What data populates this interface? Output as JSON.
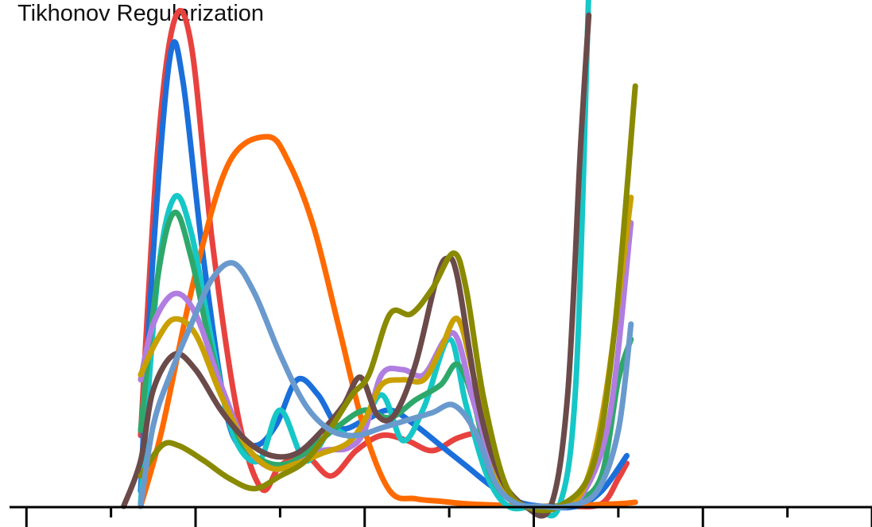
{
  "chart_data": {
    "type": "line",
    "title": "Tikhonov Regularization",
    "xlabel": "",
    "ylabel": "",
    "xlim": [
      -0.2,
      10
    ],
    "ylim": [
      0,
      10
    ],
    "grid": false,
    "legend": "none",
    "x_ticks": {
      "major": [
        0,
        2,
        4,
        6,
        8,
        10
      ],
      "minor_step": 1,
      "labels_shown": false
    },
    "series": [
      {
        "color": "#e8423f",
        "points": [
          [
            1.35,
            1.4
          ],
          [
            1.55,
            7
          ],
          [
            1.75,
            9.6
          ],
          [
            1.95,
            9.1
          ],
          [
            2.2,
            5.2
          ],
          [
            2.5,
            1.8
          ],
          [
            2.78,
            0.35
          ],
          [
            3.0,
            0.8
          ],
          [
            3.3,
            1.0
          ],
          [
            3.6,
            0.6
          ],
          [
            3.9,
            1.1
          ],
          [
            4.2,
            1.4
          ],
          [
            4.5,
            1.3
          ],
          [
            4.8,
            1.1
          ],
          [
            5.1,
            1.35
          ],
          [
            5.35,
            1.4
          ],
          [
            5.5,
            0.9
          ],
          [
            5.7,
            0.2
          ],
          [
            6.0,
            0
          ],
          [
            6.4,
            0
          ],
          [
            6.8,
            0.05
          ],
          [
            7.0,
            0.55
          ],
          [
            7.1,
            0.85
          ]
        ]
      },
      {
        "color": "#1a6fdb",
        "points": [
          [
            1.35,
            0.3
          ],
          [
            1.5,
            5
          ],
          [
            1.7,
            8.9
          ],
          [
            1.85,
            8.4
          ],
          [
            2.1,
            4.8
          ],
          [
            2.4,
            1.6
          ],
          [
            2.7,
            1.2
          ],
          [
            2.95,
            1.6
          ],
          [
            3.2,
            2.5
          ],
          [
            3.45,
            2.2
          ],
          [
            3.7,
            1.55
          ],
          [
            4.0,
            1.7
          ],
          [
            4.3,
            1.9
          ],
          [
            4.6,
            1.6
          ],
          [
            4.9,
            1.2
          ],
          [
            5.2,
            0.8
          ],
          [
            5.5,
            0.4
          ],
          [
            5.8,
            0.1
          ],
          [
            6.1,
            0
          ],
          [
            6.5,
            0
          ],
          [
            6.8,
            0.3
          ],
          [
            7.1,
            1.0
          ]
        ]
      },
      {
        "color": "#ff6a00",
        "points": [
          [
            1.35,
            0
          ],
          [
            1.6,
            1.5
          ],
          [
            2.0,
            4.6
          ],
          [
            2.4,
            6.8
          ],
          [
            2.85,
            7.3
          ],
          [
            3.1,
            6.8
          ],
          [
            3.4,
            5.5
          ],
          [
            3.7,
            3.5
          ],
          [
            4.0,
            1.5
          ],
          [
            4.3,
            0.3
          ],
          [
            4.6,
            0.15
          ],
          [
            4.9,
            0.1
          ],
          [
            5.2,
            0.05
          ],
          [
            5.6,
            0.02
          ],
          [
            6.0,
            0
          ],
          [
            6.5,
            0.02
          ],
          [
            7.0,
            0.05
          ],
          [
            7.2,
            0.08
          ]
        ]
      },
      {
        "color": "#16c7c7",
        "points": [
          [
            1.35,
            0.05
          ],
          [
            1.55,
            4.5
          ],
          [
            1.75,
            6.1
          ],
          [
            1.95,
            5.4
          ],
          [
            2.2,
            3.2
          ],
          [
            2.45,
            1.4
          ],
          [
            2.75,
            0.9
          ],
          [
            3.0,
            1.9
          ],
          [
            3.3,
            0.9
          ],
          [
            3.6,
            1.5
          ],
          [
            3.9,
            1.4
          ],
          [
            4.2,
            2.2
          ],
          [
            4.45,
            1.3
          ],
          [
            4.7,
            1.95
          ],
          [
            5.0,
            3.3
          ],
          [
            5.2,
            2.0
          ],
          [
            5.45,
            0.6
          ],
          [
            5.7,
            0
          ],
          [
            6.0,
            0
          ],
          [
            6.3,
            0
          ],
          [
            6.5,
            2.5
          ],
          [
            6.65,
            10.2
          ]
        ]
      },
      {
        "color": "#2ea86a",
        "points": [
          [
            1.35,
            1.5
          ],
          [
            1.55,
            4.5
          ],
          [
            1.75,
            5.8
          ],
          [
            1.95,
            4.9
          ],
          [
            2.2,
            3.0
          ],
          [
            2.5,
            1.4
          ],
          [
            2.8,
            0.9
          ],
          [
            3.1,
            0.85
          ],
          [
            3.4,
            1.2
          ],
          [
            3.7,
            1.6
          ],
          [
            4.0,
            1.9
          ],
          [
            4.3,
            1.75
          ],
          [
            4.6,
            2.1
          ],
          [
            4.9,
            2.4
          ],
          [
            5.1,
            2.8
          ],
          [
            5.3,
            2.0
          ],
          [
            5.5,
            0.6
          ],
          [
            5.8,
            0.05
          ],
          [
            6.2,
            0
          ],
          [
            6.5,
            0.1
          ],
          [
            6.8,
            0.6
          ],
          [
            7.0,
            2.5
          ],
          [
            7.15,
            3.3
          ]
        ]
      },
      {
        "color": "#b07de0",
        "points": [
          [
            1.35,
            2.5
          ],
          [
            1.5,
            3.6
          ],
          [
            1.75,
            4.2
          ],
          [
            2.0,
            3.8
          ],
          [
            2.3,
            2.4
          ],
          [
            2.6,
            1.2
          ],
          [
            2.9,
            0.75
          ],
          [
            3.2,
            0.85
          ],
          [
            3.5,
            1.1
          ],
          [
            3.8,
            1.15
          ],
          [
            4.0,
            1.5
          ],
          [
            4.2,
            2.6
          ],
          [
            4.45,
            2.7
          ],
          [
            4.7,
            2.6
          ],
          [
            4.95,
            3.3
          ],
          [
            5.1,
            3.3
          ],
          [
            5.3,
            2.0
          ],
          [
            5.6,
            0.5
          ],
          [
            5.9,
            0
          ],
          [
            6.3,
            0
          ],
          [
            6.6,
            0.3
          ],
          [
            6.9,
            1.8
          ],
          [
            7.15,
            5.6
          ]
        ]
      },
      {
        "color": "#c9a000",
        "points": [
          [
            1.35,
            2.6
          ],
          [
            1.55,
            3.3
          ],
          [
            1.75,
            3.7
          ],
          [
            2.0,
            3.4
          ],
          [
            2.3,
            2.2
          ],
          [
            2.6,
            1.2
          ],
          [
            2.9,
            0.75
          ],
          [
            3.2,
            0.85
          ],
          [
            3.5,
            1.05
          ],
          [
            3.8,
            1.25
          ],
          [
            4.0,
            1.7
          ],
          [
            4.2,
            2.4
          ],
          [
            4.45,
            2.5
          ],
          [
            4.7,
            2.5
          ],
          [
            4.9,
            3.1
          ],
          [
            5.1,
            3.7
          ],
          [
            5.3,
            2.5
          ],
          [
            5.6,
            0.5
          ],
          [
            5.9,
            0
          ],
          [
            6.3,
            0
          ],
          [
            6.6,
            0.4
          ],
          [
            6.85,
            2.2
          ],
          [
            7.15,
            6.1
          ]
        ]
      },
      {
        "color": "#6b4a4a",
        "points": [
          [
            1.15,
            0
          ],
          [
            1.35,
            0.9
          ],
          [
            1.5,
            2.3
          ],
          [
            1.75,
            3.0
          ],
          [
            2.0,
            2.7
          ],
          [
            2.3,
            1.9
          ],
          [
            2.6,
            1.3
          ],
          [
            2.9,
            1.0
          ],
          [
            3.2,
            1.05
          ],
          [
            3.5,
            1.5
          ],
          [
            3.75,
            2.0
          ],
          [
            3.95,
            2.55
          ],
          [
            4.15,
            1.8
          ],
          [
            4.35,
            1.8
          ],
          [
            4.6,
            2.8
          ],
          [
            4.85,
            4.5
          ],
          [
            4.98,
            4.9
          ],
          [
            5.1,
            4.5
          ],
          [
            5.35,
            2.0
          ],
          [
            5.6,
            0.6
          ],
          [
            5.9,
            0
          ],
          [
            6.2,
            0
          ],
          [
            6.4,
            2.2
          ],
          [
            6.55,
            7
          ],
          [
            6.65,
            9.7
          ]
        ]
      },
      {
        "color": "#8a8a00",
        "points": [
          [
            1.35,
            0.6
          ],
          [
            1.6,
            1.2
          ],
          [
            1.8,
            1.2
          ],
          [
            2.1,
            0.9
          ],
          [
            2.4,
            0.55
          ],
          [
            2.7,
            0.35
          ],
          [
            3.0,
            0.6
          ],
          [
            3.3,
            0.9
          ],
          [
            3.6,
            1.55
          ],
          [
            3.85,
            2.2
          ],
          [
            4.05,
            2.6
          ],
          [
            4.3,
            3.8
          ],
          [
            4.55,
            3.8
          ],
          [
            4.8,
            4.3
          ],
          [
            5.05,
            5.0
          ],
          [
            5.2,
            4.3
          ],
          [
            5.4,
            2.2
          ],
          [
            5.65,
            0.5
          ],
          [
            5.9,
            0
          ],
          [
            6.3,
            0
          ],
          [
            6.7,
            0.8
          ],
          [
            6.95,
            3.4
          ],
          [
            7.2,
            8.3
          ]
        ]
      },
      {
        "color": "#6a9acd",
        "points": [
          [
            1.35,
            0
          ],
          [
            1.5,
            1.6
          ],
          [
            1.7,
            2.6
          ],
          [
            1.95,
            3.6
          ],
          [
            2.2,
            4.5
          ],
          [
            2.45,
            4.8
          ],
          [
            2.7,
            4.2
          ],
          [
            3.0,
            3.0
          ],
          [
            3.3,
            2.0
          ],
          [
            3.6,
            1.5
          ],
          [
            3.9,
            1.4
          ],
          [
            4.2,
            1.55
          ],
          [
            4.5,
            1.7
          ],
          [
            4.8,
            1.85
          ],
          [
            5.05,
            2.0
          ],
          [
            5.3,
            1.5
          ],
          [
            5.55,
            0.45
          ],
          [
            5.8,
            0.05
          ],
          [
            6.1,
            0
          ],
          [
            6.4,
            0
          ],
          [
            6.75,
            0.3
          ],
          [
            7.0,
            1.5
          ],
          [
            7.15,
            3.6
          ]
        ]
      }
    ]
  }
}
